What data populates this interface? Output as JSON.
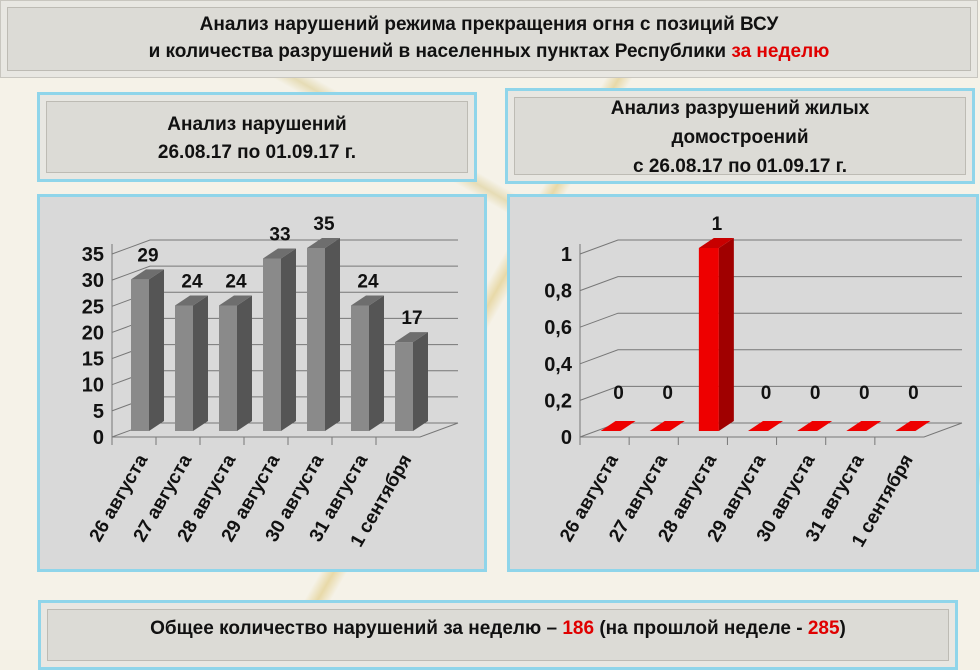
{
  "title": {
    "line1": "Анализ нарушений режима прекращения огня с позиций ВСУ",
    "line2": "и количества разрушений в населенных пунктах Республики ",
    "line2_highlight": "за неделю"
  },
  "left_header": {
    "line1": "Анализ нарушений",
    "line2": "26.08.17 по 01.09.17 г."
  },
  "right_header": {
    "line1": "Анализ разрушений жилых",
    "line2": "домостроений",
    "line3": "с 26.08.17 по 01.09.17 г."
  },
  "summary": {
    "prefix": "Общее количество нарушений за неделю – ",
    "count": "186",
    "mid": " (на прошлой неделе - ",
    "prev": "285",
    "suffix": ")"
  },
  "colors": {
    "bar_gray": "#8a8a8a",
    "bar_red": "#ee0000",
    "highlight": "#e00000"
  },
  "chart_data": [
    {
      "type": "bar",
      "categories": [
        "26 августа",
        "27 августа",
        "28 августа",
        "29 августа",
        "30 августа",
        "31 августа",
        "1 сентября"
      ],
      "values": [
        29,
        24,
        24,
        33,
        35,
        24,
        17
      ],
      "ylim": [
        0,
        35
      ],
      "yticks": [
        "0",
        "5",
        "10",
        "15",
        "20",
        "25",
        "30",
        "35"
      ],
      "grid": true,
      "style": "3d"
    },
    {
      "type": "bar",
      "categories": [
        "26 августа",
        "27 августа",
        "28 августа",
        "29 августа",
        "30 августа",
        "31 августа",
        "1 сентября"
      ],
      "values": [
        0,
        0,
        1,
        0,
        0,
        0,
        0
      ],
      "ylim": [
        0,
        1
      ],
      "yticks": [
        "0",
        "0,2",
        "0,4",
        "0,6",
        "0,8",
        "1"
      ],
      "grid": true,
      "style": "3d"
    }
  ]
}
